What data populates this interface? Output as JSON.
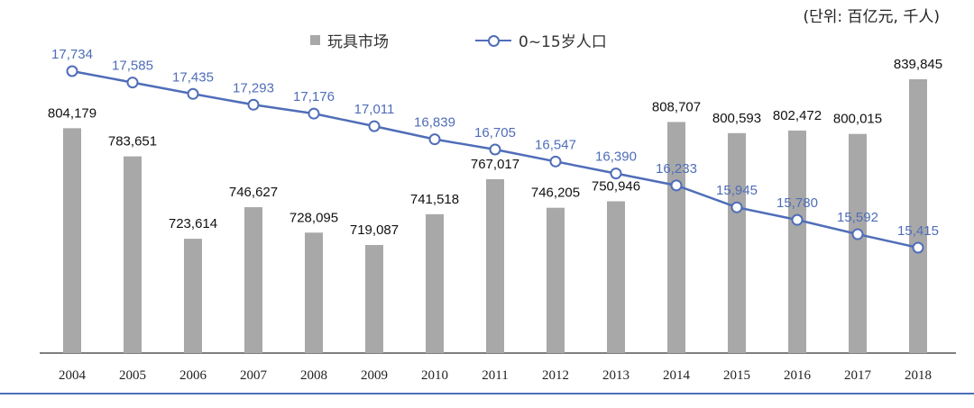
{
  "unit_note": "(단위: 百亿元, 千人)",
  "legend": {
    "bar_label": "玩具市场",
    "line_label": "0~15岁人口"
  },
  "colors": {
    "bar": "#a8a8a8",
    "line": "#4f6db8",
    "bottom_rule": "#4f6db8"
  },
  "chart_data": {
    "type": "bar",
    "categories": [
      "2004",
      "2005",
      "2006",
      "2007",
      "2008",
      "2009",
      "2010",
      "2011",
      "2012",
      "2013",
      "2014",
      "2015",
      "2016",
      "2017",
      "2018"
    ],
    "series": [
      {
        "name": "玩具市场",
        "type": "bar",
        "values": [
          804179,
          783651,
          723614,
          746627,
          728095,
          719087,
          741518,
          767017,
          746205,
          750946,
          808707,
          800593,
          802472,
          800015,
          839845
        ],
        "labels": [
          "804,179",
          "783,651",
          "723,614",
          "746,627",
          "728,095",
          "719,087",
          "741,518",
          "767,017",
          "746,205",
          "750,946",
          "808,707",
          "800,593",
          "802,472",
          "800,015",
          "839,845"
        ]
      },
      {
        "name": "0~15岁人口",
        "type": "line",
        "values": [
          17734,
          17585,
          17435,
          17293,
          17176,
          17011,
          16839,
          16705,
          16547,
          16390,
          16233,
          15945,
          15780,
          15592,
          15415
        ],
        "labels": [
          "17,734",
          "17,585",
          "17,435",
          "17,293",
          "17,176",
          "17,011",
          "16,839",
          "16,705",
          "16,547",
          "16,390",
          "16,233",
          "15,945",
          "15,780",
          "15,592",
          "15,415"
        ]
      }
    ],
    "grid": false
  }
}
